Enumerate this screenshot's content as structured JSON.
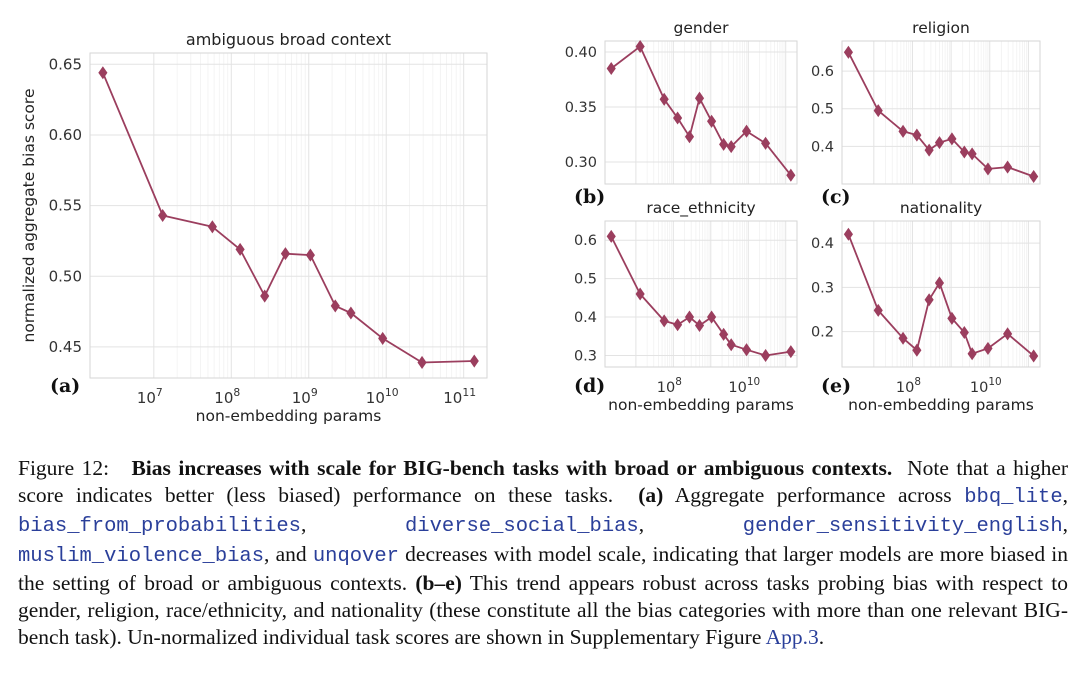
{
  "chart_data": [
    {
      "id": "a",
      "type": "line",
      "title": "ambiguous broad context",
      "panel_label": "(a)",
      "xlabel": "non-embedding params",
      "ylabel": "normalized aggregate bias score",
      "xscale": "log",
      "xlim": [
        1500000,
        200000000000
      ],
      "ylim": [
        0.428,
        0.658
      ],
      "yticks": [
        0.45,
        0.5,
        0.55,
        0.6,
        0.65
      ],
      "ytick_labels": [
        "0.45",
        "0.50",
        "0.55",
        "0.60",
        "0.65"
      ],
      "xticks": [
        10000000,
        100000000,
        1000000000,
        10000000000,
        100000000000
      ],
      "xtick_labels": [
        [
          "10",
          "7"
        ],
        [
          "10",
          "8"
        ],
        [
          "10",
          "9"
        ],
        [
          "10",
          "10"
        ],
        [
          "10",
          "11"
        ]
      ],
      "x": [
        2200000,
        13000000,
        57000000,
        130000000,
        270000000,
        500000000,
        1050000000,
        2200000000,
        3500000000,
        9000000000,
        29000000000,
        137000000000
      ],
      "y": [
        0.644,
        0.543,
        0.535,
        0.519,
        0.486,
        0.516,
        0.515,
        0.479,
        0.474,
        0.456,
        0.439,
        0.44
      ],
      "color": "#9b3e5e"
    },
    {
      "id": "b",
      "type": "line",
      "title": "gender",
      "panel_label": "(b)",
      "xlabel": "",
      "ylabel": "",
      "xscale": "log",
      "xlim": [
        1500000,
        200000000000
      ],
      "ylim": [
        0.28,
        0.41
      ],
      "yticks": [
        0.3,
        0.35,
        0.4
      ],
      "ytick_labels": [
        "0.30",
        "0.35",
        "0.40"
      ],
      "xticks": [],
      "xtick_labels": [],
      "x": [
        2200000,
        13000000,
        57000000,
        130000000,
        270000000,
        500000000,
        1050000000,
        2200000000,
        3500000000,
        9000000000,
        29000000000,
        137000000000
      ],
      "y": [
        0.385,
        0.405,
        0.357,
        0.34,
        0.323,
        0.358,
        0.337,
        0.316,
        0.314,
        0.328,
        0.317,
        0.288
      ],
      "color": "#9b3e5e"
    },
    {
      "id": "c",
      "type": "line",
      "title": "religion",
      "panel_label": "(c)",
      "xlabel": "",
      "ylabel": "",
      "xscale": "log",
      "xlim": [
        1500000,
        200000000000
      ],
      "ylim": [
        0.3,
        0.68
      ],
      "yticks": [
        0.4,
        0.5,
        0.6
      ],
      "ytick_labels": [
        "0.4",
        "0.5",
        "0.6"
      ],
      "xticks": [],
      "xtick_labels": [],
      "x": [
        2200000,
        13000000,
        57000000,
        130000000,
        270000000,
        500000000,
        1050000000,
        2200000000,
        3500000000,
        9000000000,
        29000000000,
        137000000000
      ],
      "y": [
        0.65,
        0.495,
        0.44,
        0.43,
        0.39,
        0.41,
        0.42,
        0.385,
        0.38,
        0.34,
        0.345,
        0.32
      ],
      "color": "#9b3e5e"
    },
    {
      "id": "d",
      "type": "line",
      "title": "race_ethnicity",
      "panel_label": "(d)",
      "xlabel": "non-embedding params",
      "ylabel": "",
      "xscale": "log",
      "xlim": [
        1500000,
        200000000000
      ],
      "ylim": [
        0.27,
        0.65
      ],
      "yticks": [
        0.3,
        0.4,
        0.5,
        0.6
      ],
      "ytick_labels": [
        "0.3",
        "0.4",
        "0.5",
        "0.6"
      ],
      "xticks": [
        100000000,
        10000000000
      ],
      "xtick_labels": [
        [
          "10",
          "8"
        ],
        [
          "10",
          "10"
        ]
      ],
      "x": [
        2200000,
        13000000,
        57000000,
        130000000,
        270000000,
        500000000,
        1050000000,
        2200000000,
        3500000000,
        9000000000,
        29000000000,
        137000000000
      ],
      "y": [
        0.61,
        0.46,
        0.39,
        0.38,
        0.4,
        0.378,
        0.4,
        0.355,
        0.328,
        0.315,
        0.3,
        0.31
      ],
      "color": "#9b3e5e"
    },
    {
      "id": "e",
      "type": "line",
      "title": "nationality",
      "panel_label": "(e)",
      "xlabel": "non-embedding params",
      "ylabel": "",
      "xscale": "log",
      "xlim": [
        1500000,
        200000000000
      ],
      "ylim": [
        0.12,
        0.45
      ],
      "yticks": [
        0.2,
        0.3,
        0.4
      ],
      "ytick_labels": [
        "0.2",
        "0.3",
        "0.4"
      ],
      "xticks": [
        100000000,
        10000000000
      ],
      "xtick_labels": [
        [
          "10",
          "8"
        ],
        [
          "10",
          "10"
        ]
      ],
      "x": [
        2200000,
        13000000,
        57000000,
        130000000,
        270000000,
        500000000,
        1050000000,
        2200000000,
        3500000000,
        9000000000,
        29000000000,
        137000000000
      ],
      "y": [
        0.42,
        0.248,
        0.185,
        0.158,
        0.272,
        0.31,
        0.23,
        0.198,
        0.15,
        0.162,
        0.195,
        0.145
      ],
      "color": "#9b3e5e"
    }
  ],
  "caption": {
    "figure_label": "Figure 12:",
    "bold_title": "Bias increases with scale for BIG-bench tasks with broad or ambiguous contexts.",
    "sentence_1": "Note that a higher score indicates better (less biased) performance on these tasks.",
    "panel_a_ref": "(a)",
    "text_a": "Aggregate performance across",
    "task_1": "bbq_lite",
    "sep_1": ",",
    "task_2": "bias_from_probabilities",
    "sep_2": ",",
    "task_3": "diverse_social_bias",
    "sep_3": ",",
    "task_4": "gender_sensitivity_english",
    "sep_4": ",",
    "task_5": "muslim_violence_bias",
    "sep_5": ", and",
    "task_6": "unqover",
    "text_b": "decreases with model scale, indicating that larger models are more biased in the setting of broad or ambiguous contexts.",
    "panel_be_ref": "(b–e)",
    "text_c": "This trend appears robust across tasks probing bias with respect to gender, religion, race/ethnicity, and nationality (these constitute all the bias categories with more than one relevant BIG-bench task). Un-normalized individual task scores are shown in Supplementary Figure",
    "figure_ref": "App.3",
    "end": "."
  }
}
